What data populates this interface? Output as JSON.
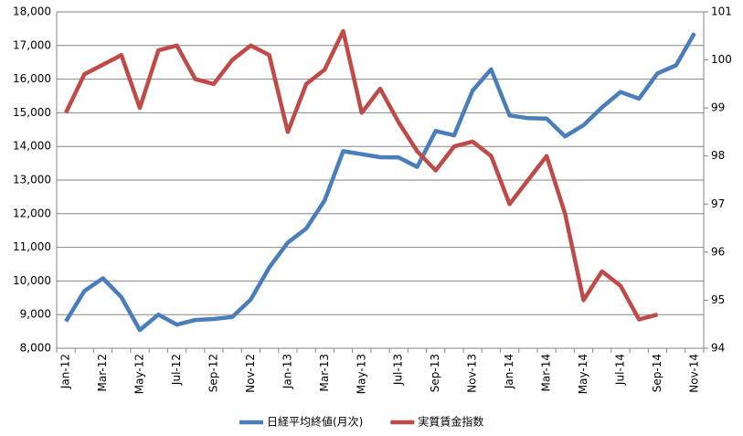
{
  "chart_data": {
    "type": "line",
    "categories": [
      "Jan-12",
      null,
      "Mar-12",
      null,
      "May-12",
      null,
      "Jul-12",
      null,
      "Sep-12",
      null,
      "Nov-12",
      null,
      "Jan-13",
      null,
      "Mar-13",
      null,
      "May-13",
      null,
      "Jul-13",
      null,
      "Sep-13",
      null,
      "Nov-13",
      null,
      "Jan-14",
      null,
      "Mar-14",
      null,
      "May-14",
      null,
      "Jul-14",
      null,
      "Sep-14",
      null,
      "Nov-14"
    ],
    "series": [
      {
        "name": "日経平均終値(月次)",
        "color": "#4a7ebb",
        "axis": "y",
        "values": [
          8800,
          9700,
          10080,
          9520,
          8540,
          9000,
          8700,
          8840,
          8870,
          8930,
          9450,
          10400,
          11140,
          11560,
          12400,
          13860,
          13770,
          13680,
          13670,
          13390,
          14460,
          14330,
          15660,
          16290,
          14920,
          14840,
          14830,
          14300,
          14630,
          15160,
          15620,
          15420,
          16170,
          16410,
          17370
        ]
      },
      {
        "name": "実質賃金指数",
        "color": "#be4b48",
        "axis": "y2",
        "values": [
          98.9,
          99.7,
          99.9,
          100.1,
          99.0,
          100.2,
          100.3,
          99.6,
          99.5,
          100.0,
          100.3,
          100.1,
          98.5,
          99.5,
          99.8,
          100.6,
          98.9,
          99.4,
          98.7,
          98.1,
          97.7,
          98.2,
          98.3,
          98.0,
          97.0,
          97.5,
          98.0,
          96.8,
          95.0,
          95.6,
          95.3,
          94.6,
          94.7,
          null,
          null
        ]
      }
    ],
    "ylim": [
      8000,
      18000
    ],
    "yticks": [
      {
        "value": 8000,
        "label": "8,000"
      },
      {
        "value": 9000,
        "label": "9,000"
      },
      {
        "value": 10000,
        "label": "10,000"
      },
      {
        "value": 11000,
        "label": "11,000"
      },
      {
        "value": 12000,
        "label": "12,000"
      },
      {
        "value": 13000,
        "label": "13,000"
      },
      {
        "value": 14000,
        "label": "14,000"
      },
      {
        "value": 15000,
        "label": "15,000"
      },
      {
        "value": 16000,
        "label": "16,000"
      },
      {
        "value": 17000,
        "label": "17,000"
      },
      {
        "value": 18000,
        "label": "18,000"
      }
    ],
    "y2lim": [
      94,
      101
    ],
    "y2ticks": [
      94,
      95,
      96,
      97,
      98,
      99,
      100,
      101
    ],
    "grid": true,
    "legend": "bottom"
  }
}
